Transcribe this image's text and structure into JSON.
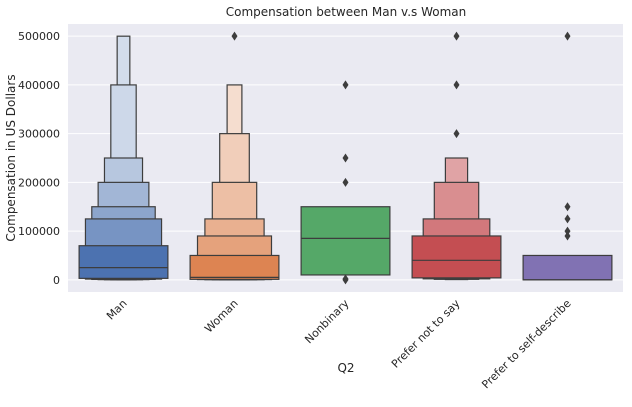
{
  "chart_data": {
    "type": "boxen",
    "title": "Compensation between Man v.s Woman",
    "xlabel": "Q2",
    "ylabel": "Compensation in US Dollars",
    "ylim": [
      -25000,
      525000
    ],
    "yticks": [
      0,
      100000,
      200000,
      300000,
      400000,
      500000
    ],
    "ytick_labels": [
      "0",
      "100000",
      "200000",
      "300000",
      "400000",
      "500000"
    ],
    "grid": true,
    "categories": [
      "Man",
      "Woman",
      "Nonbinary",
      "Prefer not to say",
      "Prefer to self-describe"
    ],
    "colors": [
      "#4c72b0",
      "#dd8452",
      "#55a868",
      "#c44e52",
      "#8172b3"
    ],
    "background_color": "#eaeaf2",
    "series": [
      {
        "category": "Man",
        "median": 25000,
        "boxes": [
          {
            "low": 3000,
            "high": 70000
          },
          {
            "low": 1500,
            "high": 125000
          },
          {
            "low": 800,
            "high": 150000
          },
          {
            "low": 400,
            "high": 200000
          },
          {
            "low": 200,
            "high": 250000
          },
          {
            "low": 100,
            "high": 400000
          },
          {
            "low": 50,
            "high": 500000
          }
        ],
        "outliers": []
      },
      {
        "category": "Woman",
        "median": 5000,
        "boxes": [
          {
            "low": 1000,
            "high": 50000
          },
          {
            "low": 500,
            "high": 90000
          },
          {
            "low": 250,
            "high": 125000
          },
          {
            "low": 100,
            "high": 200000
          },
          {
            "low": 50,
            "high": 300000
          },
          {
            "low": 20,
            "high": 400000
          }
        ],
        "outliers": [
          500000
        ]
      },
      {
        "category": "Nonbinary",
        "median": 85000,
        "boxes": [
          {
            "low": 10000,
            "high": 150000
          }
        ],
        "outliers": [
          0,
          2000,
          200000,
          250000,
          400000
        ]
      },
      {
        "category": "Prefer not to say",
        "median": 40000,
        "boxes": [
          {
            "low": 4000,
            "high": 90000
          },
          {
            "low": 2000,
            "high": 125000
          },
          {
            "low": 1000,
            "high": 200000
          },
          {
            "low": 500,
            "high": 250000
          }
        ],
        "outliers": [
          300000,
          400000,
          500000
        ]
      },
      {
        "category": "Prefer to self-describe",
        "median": 0,
        "boxes": [
          {
            "low": 0,
            "high": 50000
          }
        ],
        "outliers": [
          90000,
          100000,
          125000,
          150000,
          500000
        ]
      }
    ]
  }
}
